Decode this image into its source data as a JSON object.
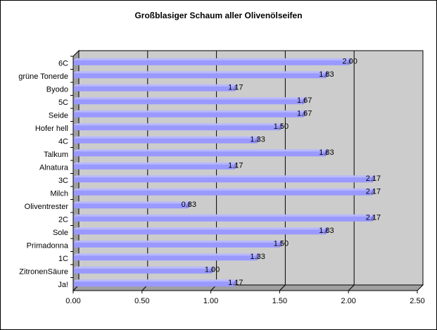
{
  "chart_data": {
    "type": "bar",
    "orientation": "horizontal",
    "title": "Großblasiger Schaum aller Olivenölseifen",
    "categories": [
      "6C",
      "grüne Tonerde",
      "Byodo",
      "5C",
      "Seide",
      "Hofer hell",
      "4C",
      "Talkum",
      "Alnatura",
      "3C",
      "Milch",
      "Oliventrester",
      "2C",
      "Sole",
      "Primadonna",
      "1C",
      "ZitronenSäure",
      "Ja!"
    ],
    "values": [
      2.0,
      1.83,
      1.17,
      1.67,
      1.67,
      1.5,
      1.33,
      1.83,
      1.17,
      2.17,
      2.17,
      0.83,
      2.17,
      1.83,
      1.5,
      1.33,
      1.0,
      1.17
    ],
    "value_labels": [
      "2.00",
      "1.83",
      "1.17",
      "1.67",
      "1.67",
      "1.50",
      "1.33",
      "1.83",
      "1.17",
      "2.17",
      "2.17",
      "0.83",
      "2.17",
      "1.83",
      "1.50",
      "1.33",
      "1.00",
      "1.17"
    ],
    "xlim": [
      0,
      2.5
    ],
    "xticks": [
      "0.00",
      "0.50",
      "1.00",
      "1.50",
      "2.00",
      "2.50"
    ],
    "grid": true,
    "colors": {
      "bar": "#9999ff",
      "plot_background": "#cccccc",
      "grid": "#000000"
    }
  }
}
